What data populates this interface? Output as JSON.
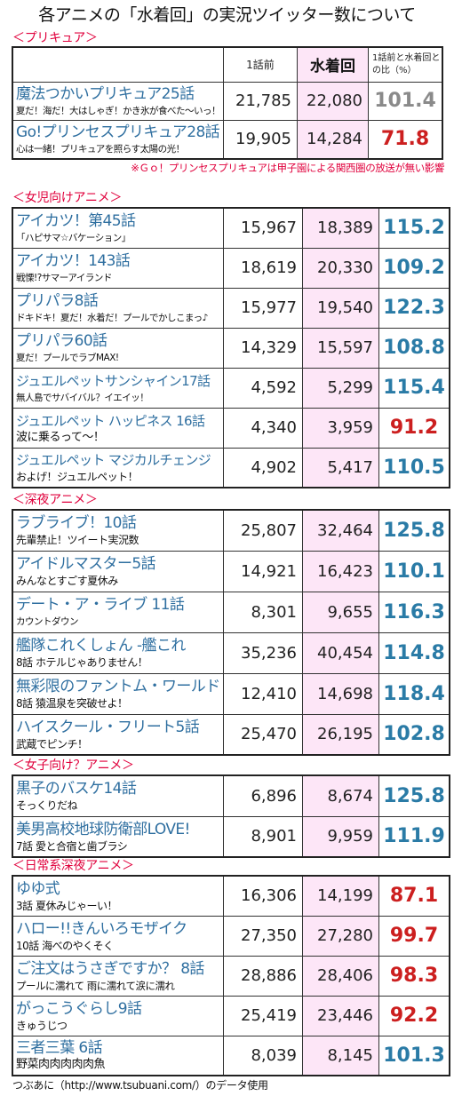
{
  "title": "各アニメの「水着回」の実況ツイッター数について",
  "header": {
    "before": "1話前",
    "swim": "水着回",
    "ratio": "1話前と水着回との比（%）"
  },
  "sections": [
    {
      "label": "＜プリキュア＞",
      "rows": [
        {
          "name": "魔法つかいプリキュア25話",
          "sub": "夏だ！海だ！大はしゃぎ！かき氷が食べた～いっ！",
          "before": "21,785",
          "swim": "22,080",
          "ratio": "101.4",
          "ratio_color": "gray"
        },
        {
          "name": "Go!プリンセスプリキュア28話",
          "sub": "心は一緒！プリキュアを照らす太陽の光！",
          "before": "19,905",
          "swim": "14,284",
          "ratio": "71.8",
          "ratio_color": "red"
        }
      ],
      "note": "※Ｇｏ！プリンセスプリキュアは甲子園による関西圏の放送が無い影響"
    },
    {
      "label": "＜女児向けアニメ＞",
      "rows": [
        {
          "name": "アイカツ！第45話",
          "sub": "「ハピサマ☆バケーション」",
          "before": "15,967",
          "swim": "18,389",
          "ratio": "115.2",
          "ratio_color": "blue"
        },
        {
          "name": "アイカツ！143話",
          "sub": "戦慄!?サマーアイランド",
          "before": "18,619",
          "swim": "20,330",
          "ratio": "109.2",
          "ratio_color": "blue"
        },
        {
          "name": "プリパラ8話",
          "sub": "ドキドキ！夏だ！水着だ！プールでかしこまっ♪",
          "before": "15,977",
          "swim": "19,540",
          "ratio": "122.3",
          "ratio_color": "blue"
        },
        {
          "name": "プリパラ60話",
          "sub": "夏だ！プールでラブMAX!",
          "before": "14,329",
          "swim": "15,597",
          "ratio": "108.8",
          "ratio_color": "blue"
        },
        {
          "name": "ジュエルペットサンシャイン17話",
          "sub": "無人島でサバイバル？イエイッ！",
          "before": "4,592",
          "swim": "5,299",
          "ratio": "115.4",
          "ratio_color": "blue"
        },
        {
          "name": "ジュエルペット ハッピネス 16話",
          "sub": "波に乗るって～！",
          "before": "4,340",
          "swim": "3,959",
          "ratio": "91.2",
          "ratio_color": "red"
        },
        {
          "name": "ジュエルペット マジカルチェンジ",
          "sub": "およげ！ジュエルペット！",
          "before": "4,902",
          "swim": "5,417",
          "ratio": "110.5",
          "ratio_color": "blue"
        }
      ]
    },
    {
      "label": "＜深夜アニメ＞",
      "rows": [
        {
          "name": "ラブライブ！10話",
          "sub": "先輩禁止！ツイート実況数",
          "before": "25,807",
          "swim": "32,464",
          "ratio": "125.8",
          "ratio_color": "blue"
        },
        {
          "name": "アイドルマスター5話",
          "sub": "みんなとすごす夏休み",
          "before": "14,921",
          "swim": "16,423",
          "ratio": "110.1",
          "ratio_color": "blue"
        },
        {
          "name": "デート・ア・ライブ 11話",
          "sub": "カウントダウン",
          "before": "8,301",
          "swim": "9,655",
          "ratio": "116.3",
          "ratio_color": "blue"
        },
        {
          "name": "艦隊これくしょん -艦これ",
          "sub": "8話 ホテルじゃありません！",
          "before": "35,236",
          "swim": "40,454",
          "ratio": "114.8",
          "ratio_color": "blue"
        },
        {
          "name": "無彩限のファントム・ワールド",
          "sub": "8話 猿温泉を突破せよ！",
          "before": "12,410",
          "swim": "14,698",
          "ratio": "118.4",
          "ratio_color": "blue"
        },
        {
          "name": "ハイスクール・フリート5話",
          "sub": "武蔵でピンチ！",
          "before": "25,470",
          "swim": "26,195",
          "ratio": "102.8",
          "ratio_color": "blue"
        }
      ]
    },
    {
      "label": "＜女子向け？アニメ＞",
      "rows": [
        {
          "name": "黒子のバスケ14話",
          "sub": "そっくりだね",
          "before": "6,896",
          "swim": "8,674",
          "ratio": "125.8",
          "ratio_color": "blue"
        },
        {
          "name": "美男高校地球防衛部LOVE!",
          "sub": "7話 愛と合宿と歯ブラシ",
          "before": "8,901",
          "swim": "9,959",
          "ratio": "111.9",
          "ratio_color": "blue"
        }
      ]
    },
    {
      "label": "＜日常系深夜アニメ＞",
      "rows": [
        {
          "name": "ゆゆ式",
          "sub": "3話 夏休みじゃーい！",
          "before": "16,306",
          "swim": "14,199",
          "ratio": "87.1",
          "ratio_color": "red"
        },
        {
          "name": "ハロー!!きんいろモザイク",
          "sub": "10話 海べのやくそく",
          "before": "27,350",
          "swim": "27,280",
          "ratio": "99.7",
          "ratio_color": "red"
        },
        {
          "name": "ご注文はうさぎですか？ 8話",
          "sub": "プールに濡れて 雨に濡れて涙に濡れ",
          "before": "28,886",
          "swim": "28,406",
          "ratio": "98.3",
          "ratio_color": "red"
        },
        {
          "name": "がっこうぐらし9話",
          "sub": "きゅうじつ",
          "before": "25,419",
          "swim": "23,446",
          "ratio": "92.2",
          "ratio_color": "red"
        },
        {
          "name": "三者三葉 6話",
          "sub": "野菜肉肉肉肉肉魚",
          "before": "8,039",
          "swim": "8,145",
          "ratio": "101.3",
          "ratio_color": "blue"
        }
      ]
    }
  ],
  "footer": "つぶあに（http://www.tsubuani.com/）のデータ使用"
}
